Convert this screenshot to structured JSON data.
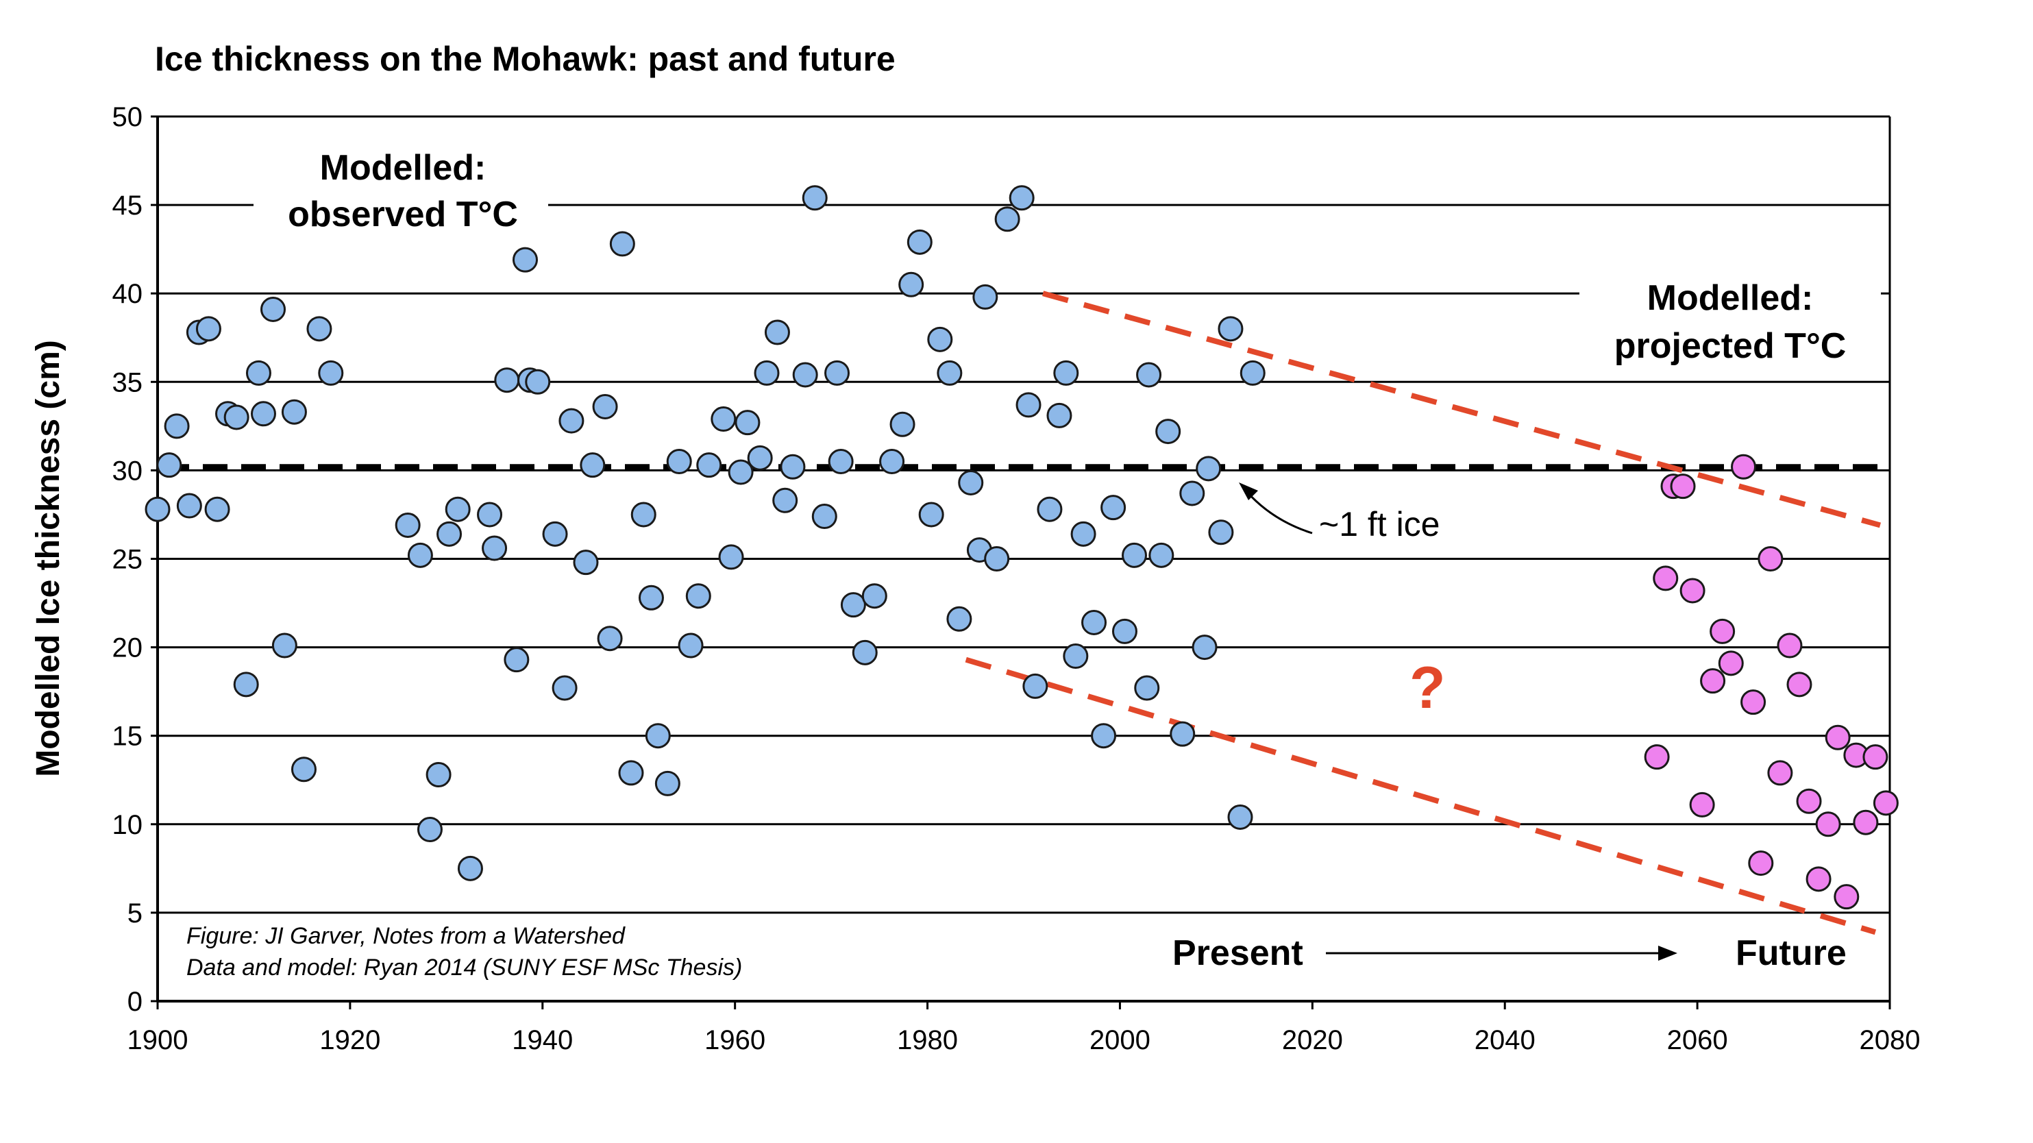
{
  "chart_data": {
    "type": "scatter",
    "title": "Ice thickness on the Mohawk:  past and future",
    "ylabel": "Modelled Ice thickness (cm)",
    "xlabel": "",
    "xlim": [
      1900,
      2080
    ],
    "ylim": [
      0,
      50
    ],
    "x_ticks": [
      "1900",
      "1920",
      "1940",
      "1960",
      "1980",
      "2000",
      "2020",
      "2040",
      "2060",
      "2080"
    ],
    "y_ticks": [
      "0",
      "5",
      "10",
      "15",
      "20",
      "25",
      "30",
      "35",
      "40",
      "45",
      "50"
    ],
    "grid": "horizontal",
    "colors": {
      "observed": "#8db8e8",
      "projected": "#ee82ee",
      "trend": "#e2482a",
      "reference": "#000000"
    },
    "reference_line": {
      "y": 30.2,
      "style": "dashed"
    },
    "series": [
      {
        "name": "Modelled: observed T°C",
        "points": [
          [
            1900,
            27.8
          ],
          [
            1901.2,
            30.3
          ],
          [
            1902,
            32.5
          ],
          [
            1903.3,
            28
          ],
          [
            1904.3,
            37.8
          ],
          [
            1905.3,
            38
          ],
          [
            1906.2,
            27.8
          ],
          [
            1907.3,
            33.2
          ],
          [
            1908.2,
            33
          ],
          [
            1909.2,
            17.9
          ],
          [
            1910.5,
            35.5
          ],
          [
            1911,
            33.2
          ],
          [
            1912,
            39.1
          ],
          [
            1913.2,
            20.1
          ],
          [
            1914.2,
            33.3
          ],
          [
            1915.2,
            13.1
          ],
          [
            1916.8,
            38
          ],
          [
            1918,
            35.5
          ],
          [
            1926,
            26.9
          ],
          [
            1927.3,
            25.2
          ],
          [
            1928.3,
            9.7
          ],
          [
            1929.2,
            12.8
          ],
          [
            1930.3,
            26.4
          ],
          [
            1931.2,
            27.8
          ],
          [
            1932.5,
            7.5
          ],
          [
            1934.5,
            27.5
          ],
          [
            1935,
            25.6
          ],
          [
            1936.3,
            35.1
          ],
          [
            1937.3,
            19.3
          ],
          [
            1938.2,
            41.9
          ],
          [
            1938.7,
            35.1
          ],
          [
            1939.5,
            35
          ],
          [
            1941.3,
            26.4
          ],
          [
            1942.3,
            17.7
          ],
          [
            1943,
            32.8
          ],
          [
            1944.5,
            24.8
          ],
          [
            1945.2,
            30.3
          ],
          [
            1946.5,
            33.6
          ],
          [
            1947,
            20.5
          ],
          [
            1948.3,
            42.8
          ],
          [
            1949.2,
            12.9
          ],
          [
            1950.5,
            27.5
          ],
          [
            1951.3,
            22.8
          ],
          [
            1952,
            15
          ],
          [
            1953,
            12.3
          ],
          [
            1954.2,
            30.5
          ],
          [
            1955.4,
            20.1
          ],
          [
            1956.2,
            22.9
          ],
          [
            1957.3,
            30.3
          ],
          [
            1958.8,
            32.9
          ],
          [
            1959.6,
            25.1
          ],
          [
            1960.6,
            29.9
          ],
          [
            1961.3,
            32.7
          ],
          [
            1962.6,
            30.7
          ],
          [
            1963.3,
            35.5
          ],
          [
            1964.4,
            37.8
          ],
          [
            1965.2,
            28.3
          ],
          [
            1966,
            30.2
          ],
          [
            1967.3,
            35.4
          ],
          [
            1968.3,
            45.4
          ],
          [
            1969.3,
            27.4
          ],
          [
            1970.6,
            35.5
          ],
          [
            1971,
            30.5
          ],
          [
            1972.3,
            22.4
          ],
          [
            1973.5,
            19.7
          ],
          [
            1974.5,
            22.9
          ],
          [
            1976.3,
            30.5
          ],
          [
            1977.4,
            32.6
          ],
          [
            1978.3,
            40.5
          ],
          [
            1979.2,
            42.9
          ],
          [
            1980.4,
            27.5
          ],
          [
            1981.3,
            37.4
          ],
          [
            1982.3,
            35.5
          ],
          [
            1983.3,
            21.6
          ],
          [
            1984.5,
            29.3
          ],
          [
            1985.4,
            25.5
          ],
          [
            1986,
            39.8
          ],
          [
            1987.2,
            25
          ],
          [
            1988.3,
            44.2
          ],
          [
            1989.8,
            45.4
          ],
          [
            1990.5,
            33.7
          ],
          [
            1991.2,
            17.8
          ],
          [
            1992.7,
            27.8
          ],
          [
            1993.7,
            33.1
          ],
          [
            1994.4,
            35.5
          ],
          [
            1995.4,
            19.5
          ],
          [
            1996.2,
            26.4
          ],
          [
            1997.3,
            21.4
          ],
          [
            1998.3,
            15
          ],
          [
            1999.3,
            27.9
          ],
          [
            2000.5,
            20.9
          ],
          [
            2001.5,
            25.2
          ],
          [
            2002.8,
            17.7
          ],
          [
            2003,
            35.4
          ],
          [
            2004.3,
            25.2
          ],
          [
            2005,
            32.2
          ],
          [
            2006.5,
            15.1
          ],
          [
            2007.5,
            28.7
          ],
          [
            2008.8,
            20
          ],
          [
            2009.2,
            30.1
          ],
          [
            2010.5,
            26.5
          ],
          [
            2011.5,
            38
          ],
          [
            2012.5,
            10.4
          ],
          [
            2013.8,
            35.5
          ]
        ]
      },
      {
        "name": "Modelled: projected T°C",
        "points": [
          [
            2055.8,
            13.8
          ],
          [
            2056.7,
            23.9
          ],
          [
            2057.5,
            29.1
          ],
          [
            2058.5,
            29.1
          ],
          [
            2059.5,
            23.2
          ],
          [
            2060.5,
            11.1
          ],
          [
            2061.6,
            18.1
          ],
          [
            2062.6,
            20.9
          ],
          [
            2063.5,
            19.1
          ],
          [
            2064.8,
            30.2
          ],
          [
            2065.8,
            16.9
          ],
          [
            2066.6,
            7.8
          ],
          [
            2067.6,
            25
          ],
          [
            2068.6,
            12.9
          ],
          [
            2069.6,
            20.1
          ],
          [
            2070.6,
            17.9
          ],
          [
            2071.6,
            11.3
          ],
          [
            2072.6,
            6.9
          ],
          [
            2073.6,
            10
          ],
          [
            2074.6,
            14.9
          ],
          [
            2075.5,
            5.9
          ],
          [
            2076.5,
            13.9
          ],
          [
            2077.5,
            10.1
          ],
          [
            2078.5,
            13.8
          ],
          [
            2079.6,
            11.2
          ]
        ]
      }
    ],
    "trend_lines": [
      {
        "from": [
          1992,
          40
        ],
        "to": [
          2079,
          26.9
        ]
      },
      {
        "from": [
          1984,
          19.3
        ],
        "to": [
          2078.5,
          3.9
        ]
      }
    ],
    "annotations": {
      "observed_label": [
        "Modelled:",
        "observed T°C"
      ],
      "projected_label": [
        "Modelled:",
        "projected T°C"
      ],
      "ref_label": "~1 ft ice",
      "question": "?",
      "present": "Present",
      "future": "Future",
      "credit_1": "Figure: JI Garver, Notes from a Watershed",
      "credit_2": "Data and model: Ryan 2014 (SUNY ESF MSc Thesis)"
    }
  }
}
